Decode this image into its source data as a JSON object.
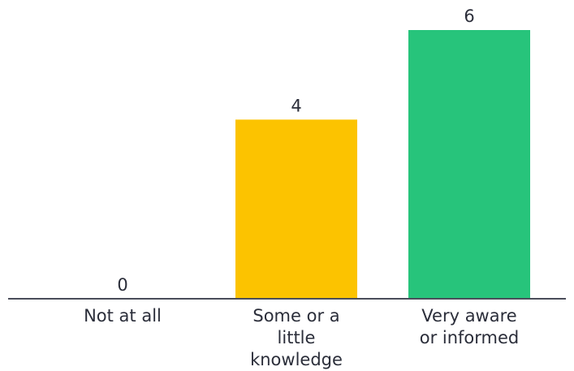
{
  "chart_data": {
    "type": "bar",
    "title": "",
    "xlabel": "",
    "ylabel": "",
    "categories": [
      [
        "Not at all"
      ],
      [
        "Some or a",
        "little",
        "knowledge"
      ],
      [
        "Very aware",
        "or informed"
      ]
    ],
    "values": [
      0,
      4,
      6
    ],
    "data_labels": [
      "0",
      "4",
      "6"
    ],
    "bar_colors": [
      "#fcc300",
      "#fcc300",
      "#27c47b"
    ],
    "axis_color": "#4a4d5a",
    "ylim": [
      0,
      6
    ],
    "grid": false,
    "legend": "none"
  }
}
